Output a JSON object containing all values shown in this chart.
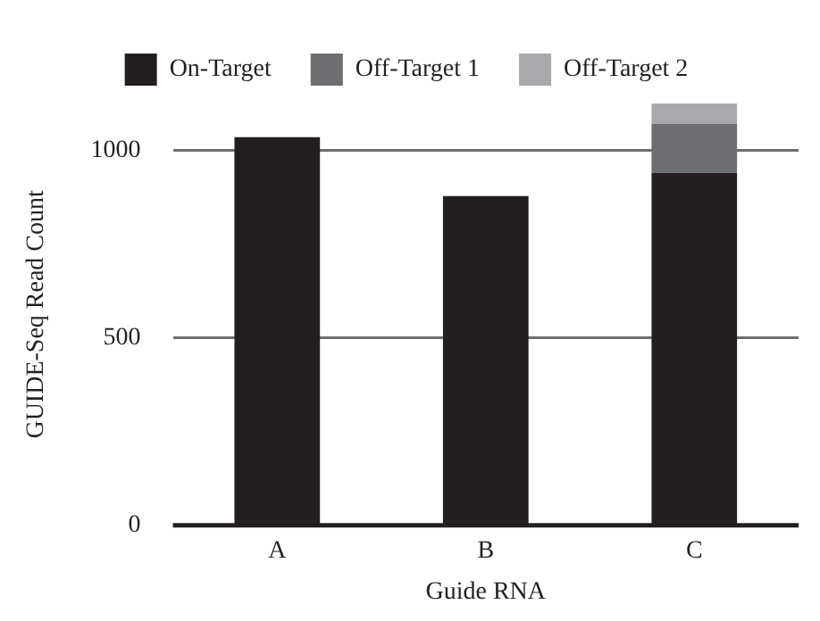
{
  "chart_data": {
    "type": "bar",
    "xlabel": "Guide RNA",
    "ylabel": "GUIDE-Seq Read Count",
    "categories": [
      "A",
      "B",
      "C"
    ],
    "stacked": true,
    "series": [
      {
        "name": "On-Target",
        "color": "#231f20",
        "values": [
          1035,
          878,
          940
        ]
      },
      {
        "name": "Off-Target 1",
        "color": "#6d6e71",
        "values": [
          null,
          null,
          130
        ]
      },
      {
        "name": "Off-Target 2",
        "color": "#a7a9ac",
        "values": [
          null,
          null,
          55
        ]
      }
    ],
    "ylim": [
      0,
      1125
    ],
    "yticks": [
      0,
      500,
      1000
    ],
    "grid": "y",
    "legend": "top"
  }
}
